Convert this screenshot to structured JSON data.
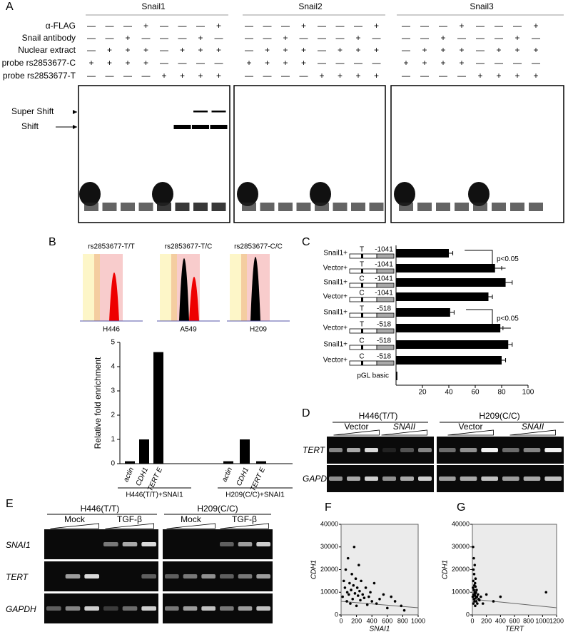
{
  "panel_a": {
    "label": "A",
    "groups": [
      "Snail1",
      "Snail2",
      "Snail3"
    ],
    "rows": [
      {
        "label": "α-FLAG",
        "signs": [
          "—",
          "—",
          "—",
          "+",
          "—",
          "—",
          "—",
          "+"
        ]
      },
      {
        "label": "Snail antibody",
        "signs": [
          "—",
          "—",
          "+",
          "—",
          "—",
          "—",
          "+",
          "—"
        ]
      },
      {
        "label": "Nuclear extract",
        "signs": [
          "—",
          "+",
          "+",
          "+",
          "—",
          "+",
          "+",
          "+"
        ]
      },
      {
        "label": "probe rs2853677-C",
        "signs": [
          "+",
          "+",
          "+",
          "+",
          "—",
          "—",
          "—",
          "—"
        ]
      },
      {
        "label": "probe rs2853677-T",
        "signs": [
          "—",
          "—",
          "—",
          "—",
          "+",
          "+",
          "+",
          "+"
        ]
      }
    ],
    "markers": [
      "Super Shift",
      "Shift"
    ]
  },
  "panel_b": {
    "label": "B",
    "genotypes": [
      {
        "title": "rs2853677-T/T",
        "cell_line": "H446"
      },
      {
        "title": "rs2853677-T/C",
        "cell_line": "A549"
      },
      {
        "title": "rs2853677-C/C",
        "cell_line": "H209"
      }
    ],
    "chart": {
      "type": "bar",
      "ylabel": "Relative fold enrichment",
      "ylim": [
        0,
        5
      ],
      "yticks": [
        0,
        1,
        2,
        3,
        4,
        5
      ],
      "color": "#000000",
      "categories": [
        "actin",
        "CDH1",
        "TERT E"
      ],
      "groups": [
        {
          "name": "H446(T/T)+SNAI1",
          "values": [
            0.1,
            1.0,
            4.6
          ]
        },
        {
          "name": "H209(C/C)+SNAI1",
          "values": [
            0.1,
            1.0,
            0.1
          ]
        }
      ]
    }
  },
  "panel_c": {
    "label": "C",
    "chart": {
      "type": "bar",
      "orientation": "horizontal",
      "color": "#000000",
      "rows": [
        {
          "label": "Snail1+",
          "allele": "T",
          "position": "-1041"
        },
        {
          "label": "Vector+",
          "allele": "T",
          "position": "-1041"
        },
        {
          "label": "Snail1+",
          "allele": "C",
          "position": "-1041"
        },
        {
          "label": "Vector+",
          "allele": "C",
          "position": "-1041"
        },
        {
          "label": "Snail1+",
          "allele": "T",
          "position": "-518"
        },
        {
          "label": "Vector+",
          "allele": "T",
          "position": "-518"
        },
        {
          "label": "Snail1+",
          "allele": "C",
          "position": "-518"
        },
        {
          "label": "Vector+",
          "allele": "C",
          "position": "-518"
        },
        {
          "label": "pGL basic"
        }
      ],
      "values": [
        40,
        75,
        83,
        70,
        41,
        79,
        85,
        80,
        1
      ],
      "errors": [
        3,
        5,
        5,
        3,
        3,
        2,
        3,
        3,
        null
      ],
      "xlim": [
        0,
        100
      ],
      "xticks": [
        20,
        40,
        60,
        80,
        100
      ],
      "annotations": [
        "p<0.05",
        "p<0.05"
      ]
    }
  },
  "panel_d": {
    "label": "D",
    "cell_lines": [
      "H446(T/T)",
      "H209(C/C)"
    ],
    "conditions": [
      "Vector",
      "SNAII"
    ],
    "genes": [
      "TERT",
      "GAPDH"
    ]
  },
  "panel_e": {
    "label": "E",
    "cell_lines": [
      "H446(T/T)",
      "H209(C/C)"
    ],
    "conditions": [
      "Mock",
      "TGF-β"
    ],
    "genes": [
      "SNAI1",
      "TERT",
      "GAPDH"
    ]
  },
  "panel_f": {
    "label": "F",
    "chart": {
      "type": "scatter",
      "xlabel": "SNAI1",
      "ylabel": "CDH1",
      "xlim": [
        0,
        1000
      ],
      "ylim": [
        0,
        40000
      ],
      "xticks": [
        0,
        200,
        400,
        600,
        800,
        1000
      ],
      "yticks": [
        0,
        10000,
        20000,
        30000,
        40000
      ],
      "x": [
        20,
        35,
        50,
        60,
        75,
        80,
        90,
        100,
        110,
        120,
        130,
        140,
        150,
        160,
        170,
        180,
        190,
        200,
        210,
        220,
        230,
        240,
        250,
        260,
        280,
        300,
        320,
        340,
        360,
        380,
        400,
        430,
        460,
        500,
        550,
        600,
        650,
        700,
        780,
        820
      ],
      "y": [
        8000,
        15000,
        12000,
        20000,
        6000,
        10000,
        25000,
        9000,
        14000,
        5000,
        11000,
        18000,
        7000,
        13000,
        30000,
        9500,
        16000,
        4000,
        12000,
        8500,
        22000,
        10500,
        6500,
        15000,
        9000,
        7500,
        12000,
        4500,
        8000,
        10000,
        6000,
        14000,
        5000,
        7000,
        9000,
        3000,
        8000,
        6000,
        4000,
        2000
      ]
    }
  },
  "panel_g": {
    "label": "G",
    "chart": {
      "type": "scatter",
      "xlabel": "TERT",
      "ylabel": "CDH1",
      "xlim": [
        0,
        1200
      ],
      "ylim": [
        0,
        40000
      ],
      "xticks": [
        0,
        200,
        400,
        600,
        800,
        1000,
        1200
      ],
      "yticks": [
        0,
        10000,
        20000,
        30000,
        40000
      ],
      "x": [
        5,
        8,
        10,
        12,
        14,
        15,
        18,
        20,
        22,
        24,
        25,
        28,
        30,
        32,
        33,
        35,
        38,
        40,
        42,
        44,
        45,
        48,
        50,
        55,
        60,
        65,
        70,
        80,
        90,
        100,
        120,
        150,
        200,
        300,
        400,
        1050
      ],
      "y": [
        8000,
        12000,
        30000,
        15000,
        5000,
        20000,
        9000,
        25000,
        11000,
        7000,
        18000,
        13000,
        6000,
        10000,
        22000,
        8500,
        14000,
        4000,
        9500,
        12500,
        16000,
        7500,
        10000,
        6000,
        11000,
        8000,
        5000,
        9000,
        7000,
        6500,
        8000,
        5000,
        9000,
        6000,
        8000,
        10000
      ]
    }
  }
}
